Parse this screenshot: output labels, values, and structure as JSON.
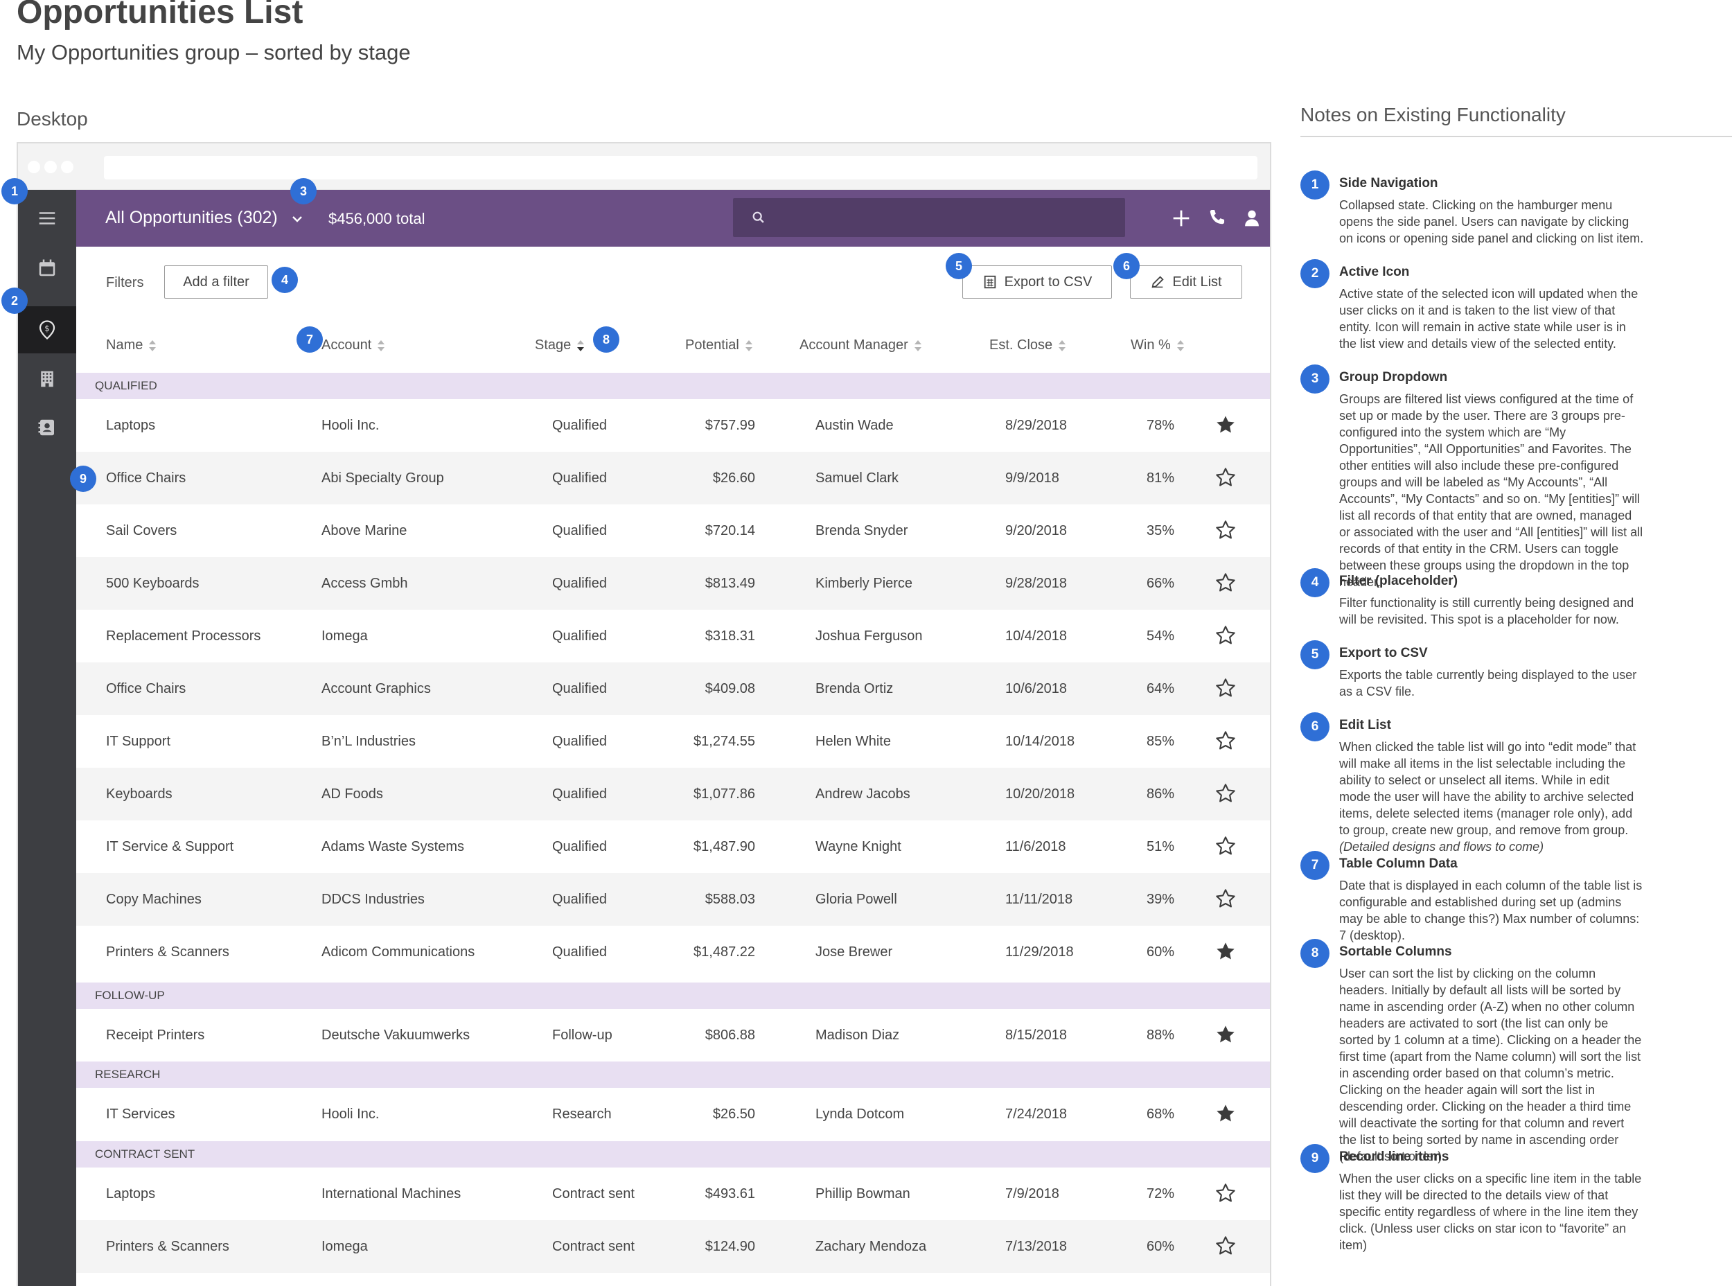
{
  "doc": {
    "title": "Opportunities List",
    "subtitle": "My Opportunities group – sorted by stage",
    "section_label": "Desktop"
  },
  "header": {
    "group_title": "All Opportunities (302)",
    "total": "$456,000 total",
    "search_placeholder": ""
  },
  "icons": {
    "sidenav": [
      "menu-icon",
      "calendar-icon",
      "opportunity-icon",
      "building-icon",
      "contacts-icon"
    ],
    "header": [
      "plus-icon",
      "phone-icon",
      "user-icon"
    ]
  },
  "toolbar": {
    "filters_label": "Filters",
    "add_filter": "Add a filter",
    "export": "Export to CSV",
    "edit": "Edit List"
  },
  "columns": {
    "name": "Name",
    "account": "Account",
    "stage": "Stage",
    "potential": "Potential",
    "manager": "Account Manager",
    "close": "Est. Close",
    "win": "Win %"
  },
  "groups": {
    "qualified": "QUALIFIED",
    "followup": "FOLLOW-UP",
    "research": "RESEARCH",
    "contract": "CONTRACT SENT"
  },
  "rows": [
    {
      "name": "Laptops",
      "account": "Hooli Inc.",
      "stage": "Qualified",
      "potential": "$757.99",
      "manager": "Austin Wade",
      "close": "8/29/2018",
      "win": "78%",
      "fav": true
    },
    {
      "name": "Office Chairs",
      "account": "Abi Specialty Group",
      "stage": "Qualified",
      "potential": "$26.60",
      "manager": "Samuel Clark",
      "close": "9/9/2018",
      "win": "81%",
      "fav": false
    },
    {
      "name": "Sail Covers",
      "account": "Above Marine",
      "stage": "Qualified",
      "potential": "$720.14",
      "manager": "Brenda Snyder",
      "close": "9/20/2018",
      "win": "35%",
      "fav": false
    },
    {
      "name": "500 Keyboards",
      "account": "Access Gmbh",
      "stage": "Qualified",
      "potential": "$813.49",
      "manager": "Kimberly Pierce",
      "close": "9/28/2018",
      "win": "66%",
      "fav": false
    },
    {
      "name": "Replacement Processors",
      "account": "Iomega",
      "stage": "Qualified",
      "potential": "$318.31",
      "manager": "Joshua Ferguson",
      "close": "10/4/2018",
      "win": "54%",
      "fav": false
    },
    {
      "name": "Office Chairs",
      "account": "Account Graphics",
      "stage": "Qualified",
      "potential": "$409.08",
      "manager": "Brenda Ortiz",
      "close": "10/6/2018",
      "win": "64%",
      "fav": false
    },
    {
      "name": "IT Support",
      "account": "B’n’L Industries",
      "stage": "Qualified",
      "potential": "$1,274.55",
      "manager": "Helen White",
      "close": "10/14/2018",
      "win": "85%",
      "fav": false
    },
    {
      "name": "Keyboards",
      "account": "AD Foods",
      "stage": "Qualified",
      "potential": "$1,077.86",
      "manager": "Andrew Jacobs",
      "close": "10/20/2018",
      "win": "86%",
      "fav": false
    },
    {
      "name": "IT Service & Support",
      "account": "Adams Waste Systems",
      "stage": "Qualified",
      "potential": "$1,487.90",
      "manager": "Wayne Knight",
      "close": "11/6/2018",
      "win": "51%",
      "fav": false
    },
    {
      "name": "Copy Machines",
      "account": "DDCS Industries",
      "stage": "Qualified",
      "potential": "$588.03",
      "manager": "Gloria Powell",
      "close": "11/11/2018",
      "win": "39%",
      "fav": false
    },
    {
      "name": "Printers & Scanners",
      "account": "Adicom Communications",
      "stage": "Qualified",
      "potential": "$1,487.22",
      "manager": "Jose Brewer",
      "close": "11/29/2018",
      "win": "60%",
      "fav": true
    },
    {
      "name": "Receipt Printers",
      "account": "Deutsche Vakuumwerks",
      "stage": "Follow-up",
      "potential": "$806.88",
      "manager": "Madison Diaz",
      "close": "8/15/2018",
      "win": "88%",
      "fav": true
    },
    {
      "name": "IT Services",
      "account": "Hooli Inc.",
      "stage": "Research",
      "potential": "$26.50",
      "manager": "Lynda Dotcom",
      "close": "7/24/2018",
      "win": "68%",
      "fav": true
    },
    {
      "name": "Laptops",
      "account": "International Machines",
      "stage": "Contract sent",
      "potential": "$493.61",
      "manager": "Phillip Bowman",
      "close": "7/9/2018",
      "win": "72%",
      "fav": false
    },
    {
      "name": "Printers & Scanners",
      "account": "Iomega",
      "stage": "Contract sent",
      "potential": "$124.90",
      "manager": "Zachary Mendoza",
      "close": "7/13/2018",
      "win": "60%",
      "fav": false
    }
  ],
  "badges": [
    "1",
    "2",
    "3",
    "4",
    "5",
    "6",
    "7",
    "8",
    "9"
  ],
  "notes": {
    "title": "Notes on Existing Functionality",
    "items": [
      {
        "num": "1",
        "title": "Side Navigation",
        "desc": "Collapsed state. Clicking on the hamburger menu opens the side panel. Users can navigate by clicking on icons or opening side panel and clicking on list item."
      },
      {
        "num": "2",
        "title": "Active Icon",
        "desc": "Active state of the selected icon will updated when the user clicks on it and is taken to the list view of that entity. Icon will remain in active state while user is in the list view and details view of the selected entity."
      },
      {
        "num": "3",
        "title": "Group Dropdown",
        "desc": "Groups are filtered list views configured at the time of set up or made by the user. There are 3 groups pre-configured into the system which are “My Opportunities”, “All Opportunities” and Favorites. The other entities will also include these pre-configured groups and will be labeled as “My Accounts”, “All Accounts”, “My Contacts” and so on. “My [entities]” will list all records of that entity that are owned, managed or associated with the user and “All [entities]” will list all records of that entity in the CRM. Users can toggle between these groups using the dropdown in the top header."
      },
      {
        "num": "4",
        "title": "Filter (placeholder)",
        "desc": "Filter functionality is still currently being designed and will be revisited. This spot is a placeholder for now."
      },
      {
        "num": "5",
        "title": "Export to CSV",
        "desc": "Exports the table currently being displayed to the user as a CSV file."
      },
      {
        "num": "6",
        "title": "Edit List",
        "desc": "When clicked the table list will go into “edit mode” that will make all items in the list selectable including the ability to select or unselect all items. While in edit mode the user will have the ability to archive selected items, delete selected items (manager role only), add to group, create new group, and remove from group.",
        "desc_italic": "(Detailed designs and flows to come)"
      },
      {
        "num": "7",
        "title": "Table Column Data",
        "desc": "Date that is displayed in each column of the table list is configurable and established during set up (admins may be able to change this?) Max number of columns: 7 (desktop)."
      },
      {
        "num": "8",
        "title": "Sortable Columns",
        "desc": "User can sort the list by clicking on the column headers. Initially by default all lists will be sorted by name in ascending order (A-Z) when no other column headers are activated to sort (the list can only be sorted by 1 column at a time). Clicking on a header the first time (apart from the Name column) will sort the list in ascending order based on that column’s metric. Clicking on the header again will sort the list in descending order. Clicking on the header a third time will deactivate the sorting for that column and revert the list to being sorted by name in ascending order (default sort order)."
      },
      {
        "num": "9",
        "title": "Record line items",
        "desc": "When the user clicks on a specific line item in the table list they will be directed to the details view of that specific entity regardless of where in the line item they click. (Unless user clicks on star icon to “favorite” an item)"
      }
    ]
  },
  "colors": {
    "header": "#6b4f85",
    "search": "#523d67",
    "sidenav": "#3d3e42",
    "group_row": "#e8dff2",
    "badge": "#2f6fd6"
  }
}
